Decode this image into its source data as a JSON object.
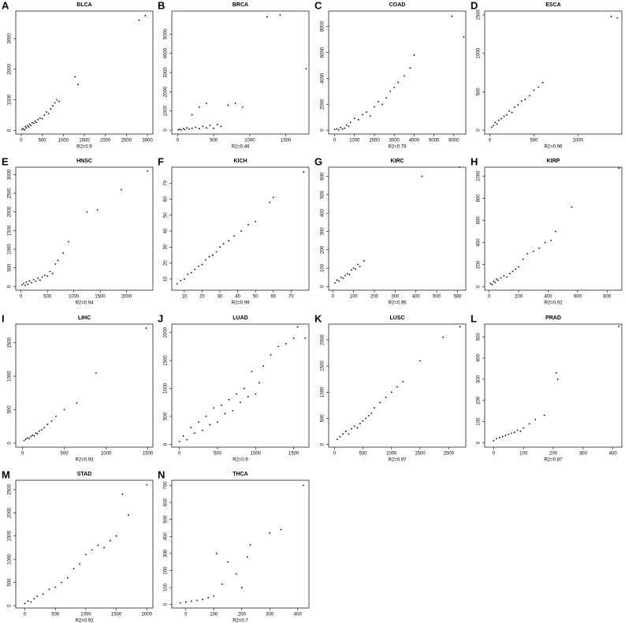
{
  "chart_data": [
    {
      "type": "scatter",
      "panel": "A",
      "title": "BLCA",
      "xlabel": "R2=0.9",
      "x": [
        20,
        50,
        80,
        100,
        120,
        150,
        180,
        200,
        230,
        260,
        300,
        330,
        360,
        400,
        450,
        500,
        550,
        600,
        650,
        700,
        750,
        800,
        850,
        900,
        1280,
        1350,
        2800,
        2950
      ],
      "y": [
        30,
        60,
        20,
        120,
        80,
        150,
        110,
        200,
        160,
        250,
        230,
        300,
        260,
        350,
        400,
        380,
        500,
        600,
        550,
        700,
        800,
        900,
        1000,
        950,
        1750,
        1500,
        3600,
        3750
      ],
      "xlim": [
        -130,
        3130
      ],
      "ylim": [
        -120,
        3900
      ],
      "xticks": [
        0,
        500,
        1000,
        1500,
        2000,
        2500,
        3000
      ],
      "yticks": [
        0,
        1000,
        2000,
        3000
      ]
    },
    {
      "type": "scatter",
      "panel": "B",
      "title": "BRCA",
      "xlabel": "R2=0.46",
      "x": [
        10,
        30,
        50,
        80,
        100,
        130,
        160,
        200,
        250,
        300,
        350,
        400,
        450,
        500,
        550,
        600,
        200,
        300,
        400,
        700,
        800,
        900,
        1240,
        1420,
        1780
      ],
      "y": [
        20,
        50,
        10,
        80,
        30,
        120,
        60,
        100,
        150,
        80,
        200,
        120,
        250,
        100,
        300,
        200,
        800,
        1200,
        1400,
        1300,
        1400,
        1200,
        5900,
        6000,
        3200
      ],
      "xlim": [
        -80,
        1820
      ],
      "ylim": [
        -200,
        6200
      ],
      "xticks": [
        0,
        500,
        1000,
        1500
      ],
      "yticks": [
        0,
        1000,
        2000,
        3000,
        4000,
        5000
      ]
    },
    {
      "type": "scatter",
      "panel": "C",
      "title": "COAD",
      "xlabel": "R2=0.79",
      "x": [
        0,
        100,
        200,
        300,
        400,
        500,
        600,
        700,
        800,
        1000,
        1200,
        1400,
        1600,
        1800,
        2000,
        2200,
        2400,
        2600,
        2800,
        3000,
        3200,
        3500,
        3800,
        4000,
        5900,
        6500
      ],
      "y": [
        50,
        100,
        20,
        200,
        80,
        150,
        400,
        300,
        600,
        900,
        800,
        1200,
        1400,
        1100,
        1800,
        2200,
        2000,
        2500,
        3000,
        3300,
        3700,
        4200,
        4800,
        5800,
        8800,
        7200
      ],
      "xlim": [
        -300,
        6600
      ],
      "ylim": [
        -300,
        9200
      ],
      "xticks": [
        0,
        1000,
        2000,
        3000,
        4000,
        5000,
        6000
      ],
      "yticks": [
        0,
        2000,
        4000,
        6000,
        8000
      ]
    },
    {
      "type": "scatter",
      "panel": "D",
      "title": "ESCA",
      "xlabel": "R2=0.96",
      "x": [
        20,
        40,
        60,
        80,
        100,
        130,
        160,
        190,
        220,
        250,
        280,
        320,
        360,
        400,
        450,
        500,
        550,
        600,
        1380,
        1450
      ],
      "y": [
        40,
        60,
        100,
        80,
        130,
        150,
        180,
        200,
        250,
        230,
        300,
        330,
        380,
        400,
        450,
        520,
        560,
        620,
        1480,
        1460
      ],
      "xlim": [
        -60,
        1500
      ],
      "ylim": [
        -50,
        1550
      ],
      "xticks": [
        0,
        500,
        1000
      ],
      "yticks": [
        0,
        500,
        1000,
        1500
      ]
    },
    {
      "type": "scatter",
      "panel": "E",
      "title": "HNSC",
      "xlabel": "R2=0.94",
      "x": [
        20,
        50,
        80,
        100,
        130,
        160,
        200,
        240,
        280,
        320,
        360,
        400,
        450,
        500,
        550,
        600,
        650,
        700,
        800,
        900,
        1250,
        1450,
        1900,
        2400
      ],
      "y": [
        40,
        80,
        30,
        120,
        60,
        150,
        100,
        180,
        140,
        220,
        170,
        250,
        300,
        280,
        400,
        350,
        600,
        700,
        900,
        1200,
        2000,
        2050,
        2600,
        3100
      ],
      "xlim": [
        -100,
        2500
      ],
      "ylim": [
        -100,
        3200
      ],
      "xticks": [
        0,
        500,
        1000,
        1500,
        2000
      ],
      "yticks": [
        0,
        500,
        1000,
        1500,
        2000,
        2500,
        3000
      ]
    },
    {
      "type": "scatter",
      "panel": "F",
      "title": "KICH",
      "xlabel": "R2=0.99",
      "x": [
        6,
        8,
        10,
        12,
        14,
        16,
        18,
        20,
        22,
        24,
        26,
        28,
        30,
        32,
        35,
        38,
        42,
        46,
        50,
        58,
        60,
        77
      ],
      "y": [
        7,
        9,
        10,
        13,
        14,
        16,
        18,
        19,
        22,
        24,
        25,
        27,
        30,
        32,
        34,
        37,
        40,
        44,
        46,
        58,
        61,
        77
      ],
      "xlim": [
        3,
        80
      ],
      "ylim": [
        3,
        80
      ],
      "xticks": [
        10,
        20,
        30,
        40,
        50,
        60,
        70
      ],
      "yticks": [
        10,
        20,
        30,
        40,
        50,
        60,
        70
      ]
    },
    {
      "type": "scatter",
      "panel": "G",
      "title": "KIRC",
      "xlabel": "R2=0.95",
      "x": [
        10,
        20,
        30,
        40,
        50,
        60,
        70,
        80,
        90,
        100,
        110,
        120,
        130,
        150,
        430,
        610
      ],
      "y": [
        20,
        35,
        30,
        50,
        45,
        60,
        70,
        65,
        90,
        100,
        95,
        120,
        110,
        140,
        600,
        650
      ],
      "xlim": [
        -20,
        640
      ],
      "ylim": [
        -20,
        650
      ],
      "xticks": [
        0,
        100,
        200,
        300,
        400,
        500,
        600
      ],
      "yticks": [
        0,
        100,
        200,
        300,
        400,
        500,
        600
      ]
    },
    {
      "type": "scatter",
      "panel": "H",
      "title": "KIRP",
      "xlabel": "R2=0.92",
      "x": [
        10,
        20,
        30,
        40,
        50,
        60,
        80,
        100,
        120,
        140,
        160,
        180,
        200,
        230,
        260,
        300,
        340,
        380,
        420,
        450,
        560,
        880
      ],
      "y": [
        30,
        20,
        50,
        40,
        70,
        60,
        80,
        100,
        90,
        120,
        140,
        160,
        180,
        250,
        300,
        320,
        350,
        400,
        420,
        500,
        720,
        1070
      ],
      "xlim": [
        -30,
        900
      ],
      "ylim": [
        -30,
        1080
      ],
      "xticks": [
        0,
        200,
        400,
        600,
        800
      ],
      "yticks": [
        0,
        200,
        400,
        600,
        800,
        1000
      ]
    },
    {
      "type": "scatter",
      "panel": "I",
      "title": "LIHC",
      "xlabel": "R2=0.93",
      "x": [
        20,
        40,
        60,
        80,
        100,
        120,
        140,
        160,
        180,
        200,
        230,
        260,
        300,
        350,
        400,
        500,
        650,
        880,
        1480
      ],
      "y": [
        40,
        60,
        80,
        70,
        100,
        120,
        110,
        150,
        140,
        180,
        200,
        230,
        280,
        330,
        400,
        500,
        600,
        1050,
        1720
      ],
      "xlim": [
        -80,
        1560
      ],
      "ylim": [
        -60,
        1780
      ],
      "xticks": [
        0,
        500,
        1000,
        1500
      ],
      "yticks": [
        0,
        500,
        1000,
        1500
      ]
    },
    {
      "type": "scatter",
      "panel": "J",
      "title": "LUAD",
      "xlabel": "R2=0.9",
      "x": [
        0,
        50,
        100,
        150,
        200,
        250,
        300,
        350,
        400,
        450,
        500,
        550,
        600,
        650,
        700,
        750,
        800,
        850,
        900,
        950,
        1000,
        1050,
        1100,
        1200,
        1300,
        1400,
        1500,
        1550,
        1650
      ],
      "y": [
        50,
        150,
        80,
        300,
        200,
        400,
        250,
        500,
        350,
        650,
        400,
        700,
        550,
        800,
        600,
        900,
        750,
        1000,
        850,
        1300,
        900,
        1100,
        1400,
        1600,
        1750,
        1800,
        1900,
        2100,
        1900
      ],
      "xlim": [
        -100,
        1700
      ],
      "ylim": [
        -50,
        2150
      ],
      "xticks": [
        0,
        500,
        1000,
        1500
      ],
      "yticks": [
        0,
        500,
        1000,
        1500,
        2000
      ]
    },
    {
      "type": "scatter",
      "panel": "K",
      "title": "LUSC",
      "xlabel": "R2=0.97",
      "x": [
        50,
        100,
        150,
        200,
        250,
        300,
        350,
        400,
        450,
        500,
        550,
        600,
        650,
        700,
        800,
        900,
        1000,
        1100,
        1200,
        1500,
        1900,
        2200
      ],
      "y": [
        100,
        150,
        200,
        250,
        200,
        300,
        350,
        320,
        400,
        450,
        500,
        550,
        600,
        700,
        800,
        900,
        1000,
        1100,
        1200,
        1600,
        2050,
        2250
      ],
      "xlim": [
        -100,
        2300
      ],
      "ylim": [
        -50,
        2300
      ],
      "xticks": [
        0,
        500,
        1000,
        1500,
        2000
      ],
      "yticks": [
        0,
        500,
        1000,
        1500,
        2000
      ]
    },
    {
      "type": "scatter",
      "panel": "L",
      "title": "PRAD",
      "xlabel": "R2=0.87",
      "x": [
        0,
        10,
        20,
        30,
        40,
        50,
        60,
        70,
        80,
        90,
        100,
        120,
        140,
        170,
        210,
        215,
        420
      ],
      "y": [
        10,
        20,
        25,
        30,
        35,
        40,
        45,
        50,
        60,
        55,
        70,
        90,
        110,
        130,
        330,
        300,
        550
      ],
      "xlim": [
        -30,
        430
      ],
      "ylim": [
        -20,
        560
      ],
      "xticks": [
        0,
        100,
        200,
        300,
        400
      ],
      "yticks": [
        0,
        100,
        200,
        300,
        400,
        500
      ]
    },
    {
      "type": "scatter",
      "panel": "M",
      "title": "STAD",
      "xlabel": "R2=0.92",
      "x": [
        0,
        50,
        100,
        150,
        200,
        300,
        400,
        500,
        600,
        700,
        800,
        900,
        1000,
        1100,
        1200,
        1300,
        1400,
        1500,
        1600,
        1700,
        2000
      ],
      "y": [
        50,
        100,
        80,
        150,
        200,
        250,
        350,
        400,
        500,
        600,
        800,
        900,
        1100,
        1200,
        1300,
        1250,
        1400,
        1500,
        2400,
        1950,
        2600
      ],
      "xlim": [
        -150,
        2100
      ],
      "ylim": [
        -50,
        2700
      ],
      "xticks": [
        0,
        500,
        1000,
        1500,
        2000
      ],
      "yticks": [
        0,
        500,
        1000,
        1500,
        2000,
        2500
      ]
    },
    {
      "type": "scatter",
      "panel": "N",
      "title": "THCA",
      "xlabel": "R2=0.7",
      "x": [
        -20,
        0,
        20,
        40,
        60,
        80,
        100,
        110,
        130,
        150,
        180,
        200,
        220,
        230,
        300,
        340,
        420
      ],
      "y": [
        10,
        15,
        20,
        25,
        30,
        40,
        50,
        300,
        120,
        250,
        180,
        100,
        280,
        350,
        420,
        440,
        700
      ],
      "xlim": [
        -50,
        440
      ],
      "ylim": [
        -20,
        730
      ],
      "xticks": [
        0,
        100,
        200,
        300,
        400
      ],
      "yticks": [
        0,
        100,
        200,
        300,
        400,
        500,
        600,
        700
      ]
    }
  ]
}
